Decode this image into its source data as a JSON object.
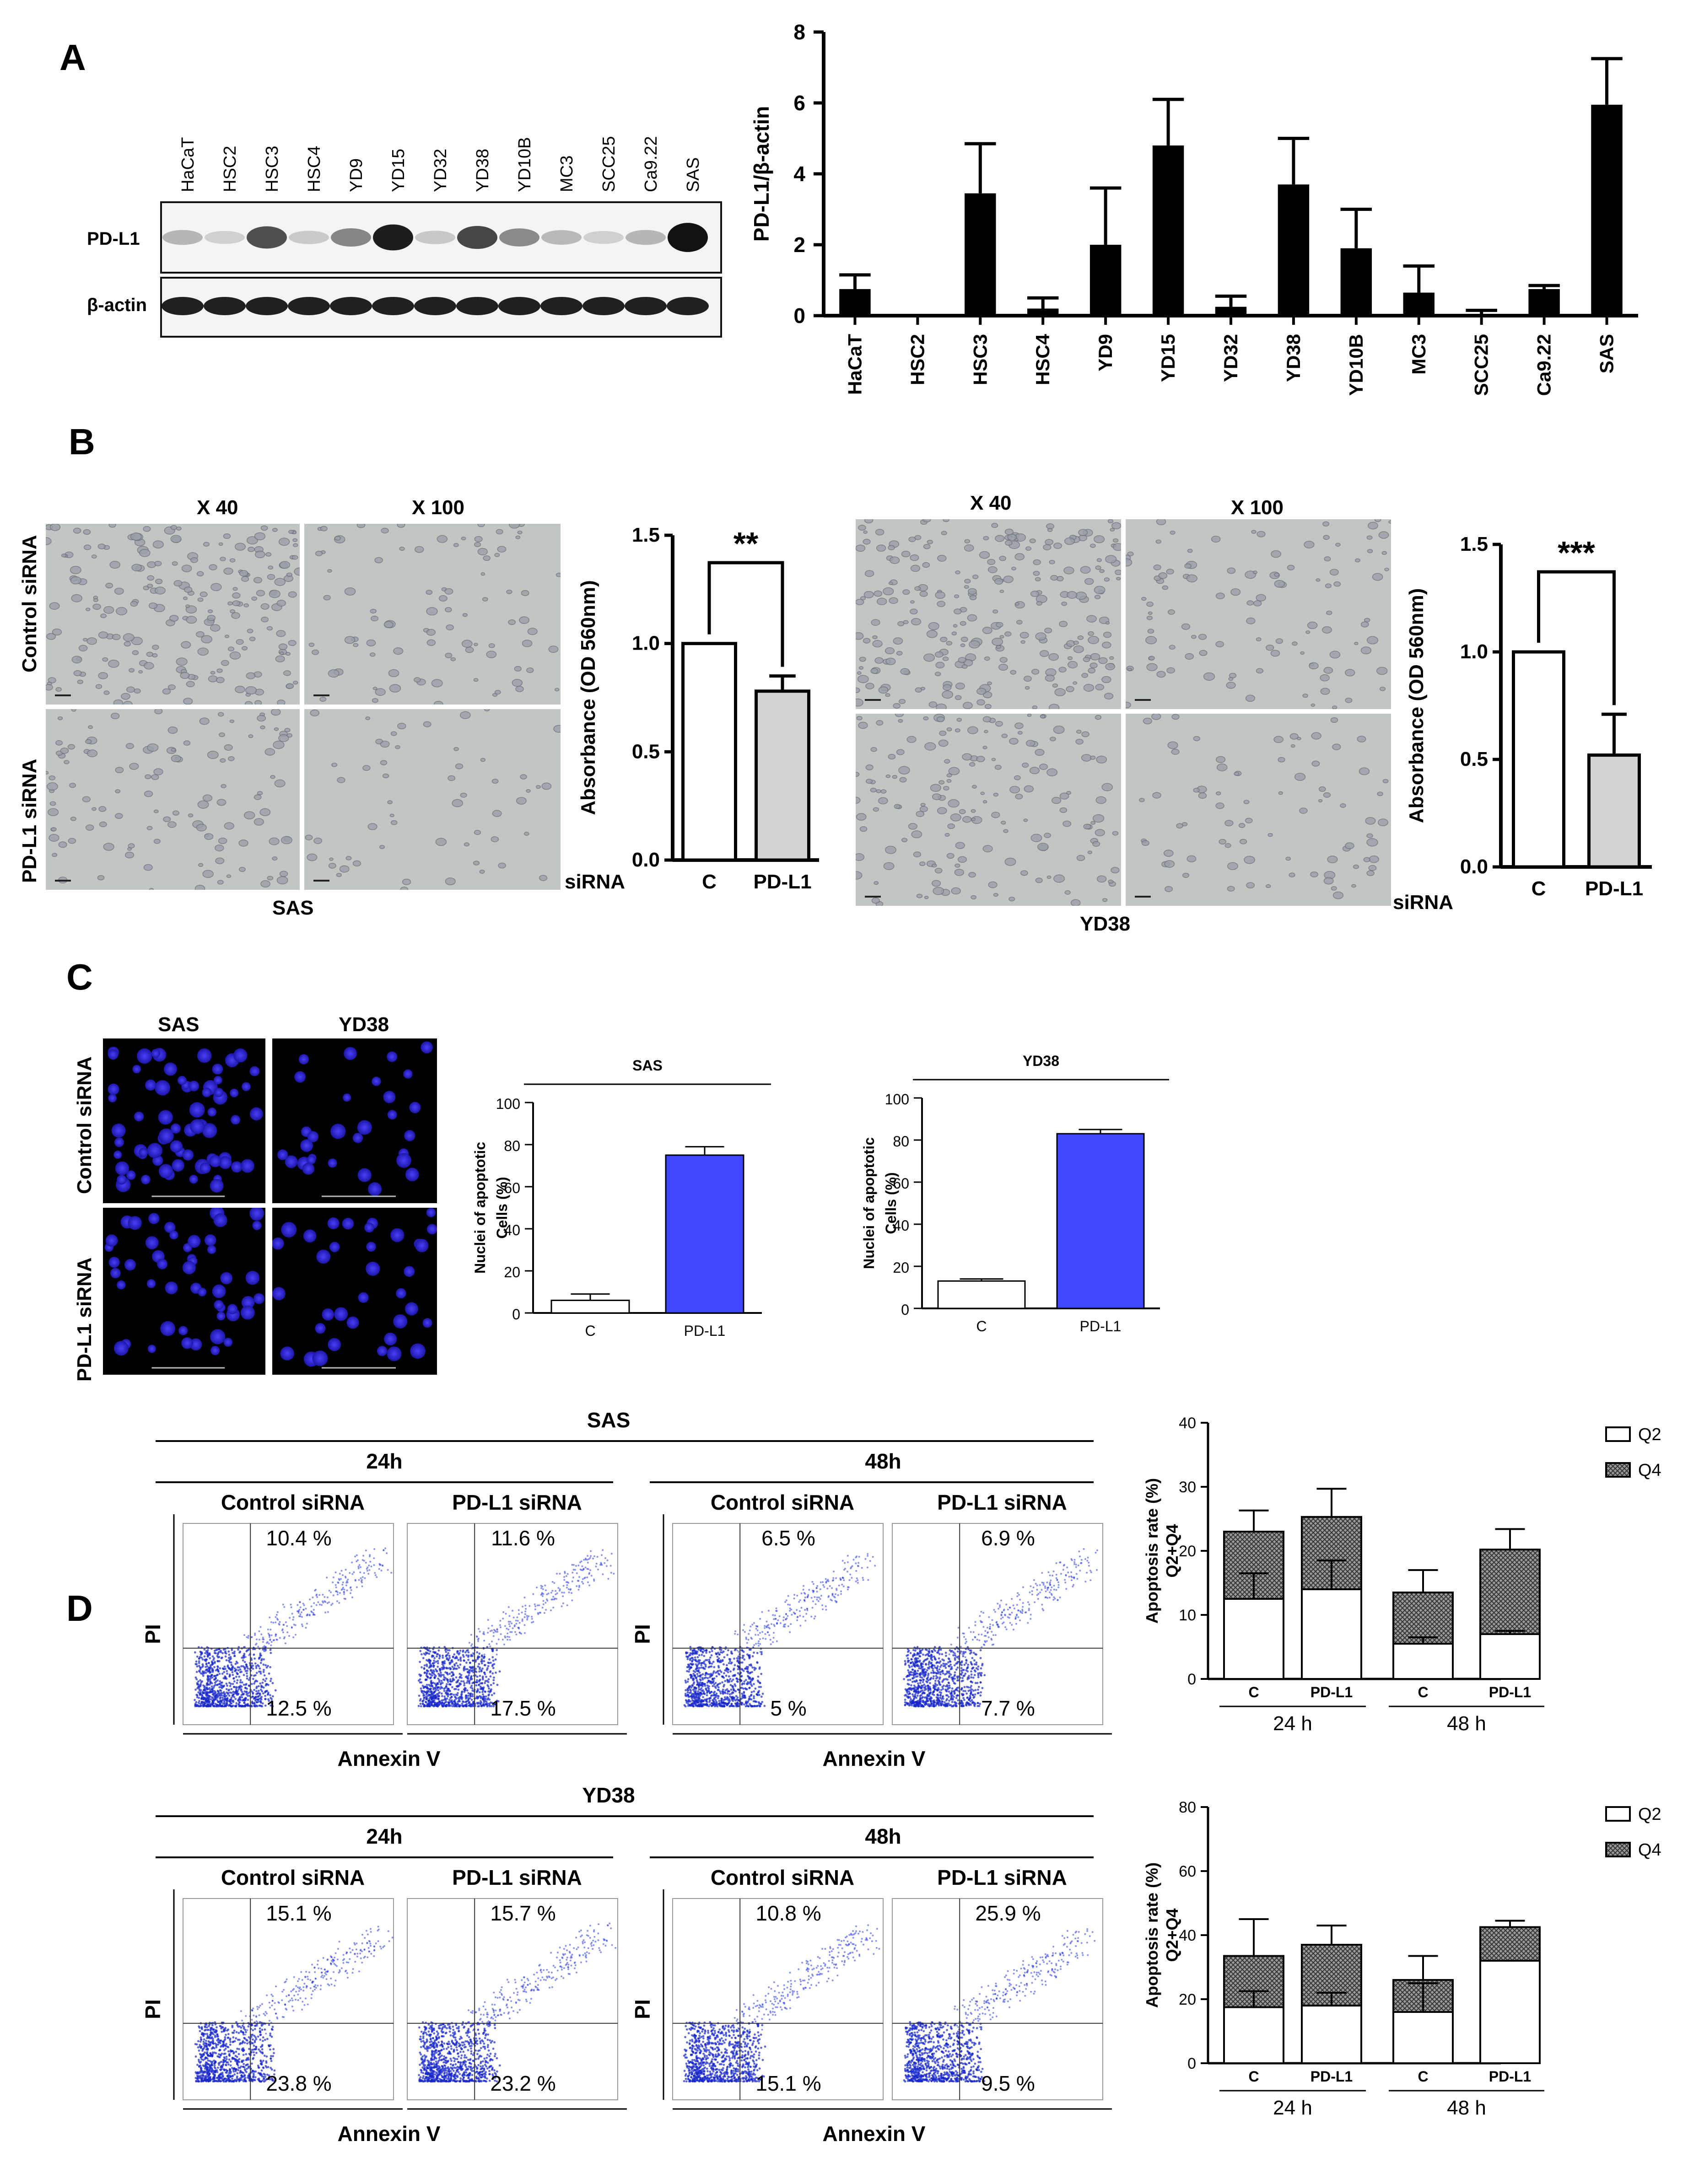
{
  "panels": {
    "A": "A",
    "B": "B",
    "C": "C",
    "D": "D"
  },
  "panelA": {
    "blot_lanes": [
      "HaCaT",
      "HSC2",
      "HSC3",
      "HSC4",
      "YD9",
      "YD15",
      "YD32",
      "YD38",
      "YD10B",
      "MC3",
      "SCC25",
      "Ca9.22",
      "SAS"
    ],
    "blot_rows": [
      "PD-L1",
      "β-actin"
    ]
  },
  "panelB": {
    "mag_labels": [
      "X 40",
      "X 100"
    ],
    "row_labels": [
      "Control siRNA",
      "PD-L1 siRNA"
    ],
    "cell_line_left": "SAS",
    "cell_line_right": "YD38",
    "xprefix": "siRNA"
  },
  "panelC": {
    "col_labels": [
      "SAS",
      "YD38"
    ],
    "row_labels": [
      "Control siRNA",
      "PD-L1 siRNA"
    ]
  },
  "panelD": {
    "sas": {
      "title": "SAS",
      "timepoints": [
        "24h",
        "48h"
      ],
      "plot_titles": [
        "Control siRNA",
        "PD-L1 siRNA",
        "Control siRNA",
        "PD-L1 siRNA"
      ],
      "q2": [
        "10.4 %",
        "11.6 %",
        "6.5 %",
        "6.9 %"
      ],
      "q4": [
        "12.5 %",
        "17.5 %",
        "5 %",
        "7.7 %"
      ],
      "xlabel": "Annexin V",
      "ylabel": "PI"
    },
    "yd38": {
      "title": "YD38",
      "timepoints": [
        "24h",
        "48h"
      ],
      "plot_titles": [
        "Control siRNA",
        "PD-L1 siRNA",
        "Control siRNA",
        "PD-L1 siRNA"
      ],
      "q2": [
        "15.1 %",
        "15.7 %",
        "10.8 %",
        "25.9 %"
      ],
      "q4": [
        "23.8 %",
        "23.2 %",
        "15.1 %",
        "9.5 %"
      ],
      "xlabel": "Annexin V",
      "ylabel": "PI"
    }
  },
  "chart_data": [
    {
      "id": "A-bar",
      "type": "bar",
      "categories": [
        "HaCaT",
        "HSC2",
        "HSC3",
        "HSC4",
        "YD9",
        "YD15",
        "YD32",
        "YD38",
        "YD10B",
        "MC3",
        "SCC25",
        "Ca9.22",
        "SAS"
      ],
      "values": [
        0.75,
        0.05,
        3.45,
        0.2,
        2.0,
        4.8,
        0.25,
        3.7,
        1.9,
        0.65,
        0.05,
        0.75,
        5.95
      ],
      "errors": [
        0.4,
        0.0,
        1.4,
        0.3,
        1.6,
        1.3,
        0.3,
        1.3,
        1.1,
        0.75,
        0.1,
        0.1,
        1.3
      ],
      "ylabel": "PD-L1/β-actin",
      "ylim": [
        0,
        8
      ],
      "yticks": [
        "0",
        "2",
        "4",
        "6",
        "8"
      ],
      "color": "#000000"
    },
    {
      "id": "B-SAS",
      "type": "bar",
      "categories": [
        "C",
        "PD-L1"
      ],
      "values": [
        1.0,
        0.78
      ],
      "errors": [
        0,
        0.07
      ],
      "colors": [
        "#ffffff",
        "#d3d3d3"
      ],
      "ylabel": "Absorbance (OD 560nm)",
      "ylim": [
        0,
        1.5
      ],
      "yticks": [
        "0.0",
        "0.5",
        "1.0",
        "1.5"
      ],
      "significance": "**"
    },
    {
      "id": "B-YD38",
      "type": "bar",
      "categories": [
        "C",
        "PD-L1"
      ],
      "values": [
        1.0,
        0.52
      ],
      "errors": [
        0,
        0.19
      ],
      "colors": [
        "#ffffff",
        "#d3d3d3"
      ],
      "ylabel": "Absorbance (OD 560nm)",
      "ylim": [
        0,
        1.5
      ],
      "yticks": [
        "0.0",
        "0.5",
        "1.0",
        "1.5"
      ],
      "significance": "***"
    },
    {
      "id": "C-SAS",
      "type": "bar",
      "title": "SAS",
      "categories": [
        "C",
        "PD-L1"
      ],
      "values": [
        6,
        75
      ],
      "errors": [
        3,
        4
      ],
      "colors": [
        "#ffffff",
        "#3f48ff"
      ],
      "ylabel": "Nuclei of apoptotic Cells (%)",
      "ylim": [
        0,
        100
      ],
      "yticks": [
        "0",
        "20",
        "40",
        "60",
        "80",
        "100"
      ]
    },
    {
      "id": "C-YD38",
      "type": "bar",
      "title": "YD38",
      "categories": [
        "C",
        "PD-L1"
      ],
      "values": [
        13,
        83
      ],
      "errors": [
        1,
        2
      ],
      "colors": [
        "#ffffff",
        "#3f48ff"
      ],
      "ylabel": "Nuclei of apoptotic Cells (%)",
      "ylim": [
        0,
        100
      ],
      "yticks": [
        "0",
        "20",
        "40",
        "60",
        "80",
        "100"
      ]
    },
    {
      "id": "D-SAS",
      "type": "bar",
      "stacked": true,
      "categories": [
        "C",
        "PD-L1",
        "C",
        "PD-L1"
      ],
      "groups": [
        "24 h",
        "48 h"
      ],
      "series": [
        {
          "name": "Q2",
          "values": [
            12.5,
            14,
            5.5,
            7
          ],
          "errors": [
            4,
            4.5,
            1,
            0.5
          ]
        },
        {
          "name": "Q4",
          "values": [
            10.5,
            11.3,
            8,
            13.2
          ],
          "errors": [
            3.3,
            4.4,
            3.5,
            3.2
          ]
        }
      ],
      "ylabel": "Apoptosis rate (%) Q2+Q4",
      "ylim": [
        0,
        40
      ],
      "yticks": [
        "0",
        "10",
        "20",
        "30",
        "40"
      ]
    },
    {
      "id": "D-YD38",
      "type": "bar",
      "stacked": true,
      "categories": [
        "C",
        "PD-L1",
        "C",
        "PD-L1"
      ],
      "groups": [
        "24 h",
        "48 h"
      ],
      "series": [
        {
          "name": "Q2",
          "values": [
            17.5,
            18,
            16,
            32
          ],
          "errors": [
            5,
            4,
            9,
            0
          ]
        },
        {
          "name": "Q4",
          "values": [
            16,
            19,
            10,
            10.5
          ],
          "errors": [
            11.5,
            6,
            7.5,
            2
          ]
        }
      ],
      "ylabel": "Apoptosis rate (%) Q2+Q4",
      "ylim": [
        0,
        80
      ],
      "yticks": [
        "0",
        "20",
        "40",
        "60",
        "80"
      ]
    }
  ]
}
